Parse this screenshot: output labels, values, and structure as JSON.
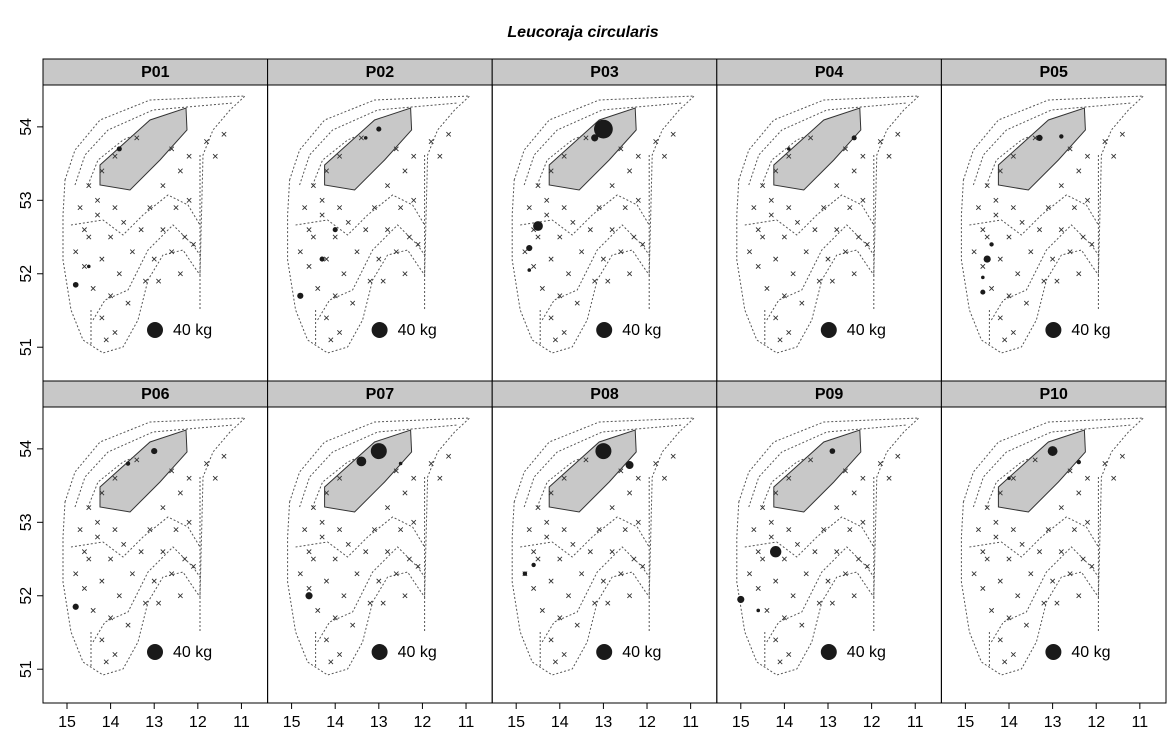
{
  "chart_data": {
    "type": "bubble",
    "title": "Leucoraja circularis",
    "xlim": [
      15.55,
      10.4
    ],
    "ylim": [
      50.54,
      54.57
    ],
    "xticks": [
      15,
      14,
      13,
      12,
      11
    ],
    "yticks": [
      51,
      52,
      53,
      54
    ],
    "color": "#1a1a1a",
    "legend_size": {
      "value": 40,
      "label": "40 kg"
    },
    "stations": {
      "lon": [
        14.7,
        14.5,
        14.6,
        14.4,
        14.2,
        13.9,
        14.0,
        14.2,
        14.3,
        14.0,
        13.8,
        13.6,
        13.5,
        13.7,
        13.3,
        13.0,
        12.8,
        13.1,
        12.6,
        12.4,
        12.3,
        12.5,
        12.2,
        12.8,
        12.4,
        12.2,
        11.8,
        11.4,
        11.6,
        12.1,
        14.6,
        14.5,
        14.2,
        13.9,
        13.4,
        14.8,
        13.2,
        13.9,
        12.9,
        14.1,
        14.3,
        12.6
      ],
      "lat": [
        52.9,
        52.5,
        52.1,
        51.8,
        51.4,
        51.2,
        51.7,
        52.2,
        52.8,
        52.5,
        52.0,
        51.6,
        52.3,
        52.7,
        52.6,
        52.2,
        52.6,
        52.9,
        52.3,
        52.0,
        52.5,
        52.9,
        53.0,
        53.2,
        53.4,
        53.6,
        53.8,
        53.9,
        53.6,
        52.4,
        52.6,
        53.2,
        53.4,
        53.6,
        53.85,
        52.3,
        51.9,
        52.9,
        51.9,
        51.1,
        53.0,
        53.7
      ]
    },
    "panels": [
      {
        "name": "P01",
        "lon": [
          13.8,
          14.5,
          14.8
        ],
        "lat": [
          53.7,
          52.1,
          51.85
        ],
        "kg": [
          4,
          2,
          5
        ]
      },
      {
        "name": "P02",
        "lon": [
          13.0,
          13.3,
          14.0,
          14.3,
          14.8
        ],
        "lat": [
          53.97,
          53.85,
          52.6,
          52.2,
          51.7
        ],
        "kg": [
          4,
          2,
          4,
          4,
          6
        ]
      },
      {
        "name": "P03",
        "lon": [
          13.0,
          13.2,
          14.5,
          14.7,
          14.7
        ],
        "lat": [
          53.97,
          53.85,
          52.65,
          52.35,
          52.05
        ],
        "kg": [
          55,
          8,
          15,
          6,
          2
        ]
      },
      {
        "name": "P04",
        "lon": [
          12.4,
          13.9
        ],
        "lat": [
          53.85,
          53.7
        ],
        "kg": [
          4,
          2
        ]
      },
      {
        "name": "P05",
        "lon": [
          13.3,
          12.8,
          14.4,
          14.5,
          14.6,
          14.6
        ],
        "lat": [
          53.85,
          53.87,
          52.4,
          52.2,
          51.95,
          51.75
        ],
        "kg": [
          6,
          3,
          3,
          8,
          2,
          4
        ]
      },
      {
        "name": "P06",
        "lon": [
          13.0,
          13.6,
          14.8
        ],
        "lat": [
          53.97,
          53.8,
          51.85
        ],
        "kg": [
          6,
          3,
          6
        ]
      },
      {
        "name": "P07",
        "lon": [
          13.0,
          13.4,
          12.5,
          14.6
        ],
        "lat": [
          53.97,
          53.83,
          53.8,
          52.0
        ],
        "kg": [
          40,
          15,
          2,
          8
        ]
      },
      {
        "name": "P08",
        "lon": [
          13.0,
          12.4,
          14.6,
          14.8
        ],
        "lat": [
          53.97,
          53.78,
          52.42,
          52.3
        ],
        "kg": [
          40,
          10,
          3,
          3
        ]
      },
      {
        "name": "P09",
        "lon": [
          12.9,
          14.2,
          15.0,
          14.6
        ],
        "lat": [
          53.97,
          52.6,
          51.95,
          51.8
        ],
        "kg": [
          5,
          20,
          8,
          2
        ]
      },
      {
        "name": "P10",
        "lon": [
          13.0,
          12.4,
          14.0
        ],
        "lat": [
          53.97,
          53.82,
          53.6
        ],
        "kg": [
          15,
          3,
          2
        ]
      }
    ]
  }
}
